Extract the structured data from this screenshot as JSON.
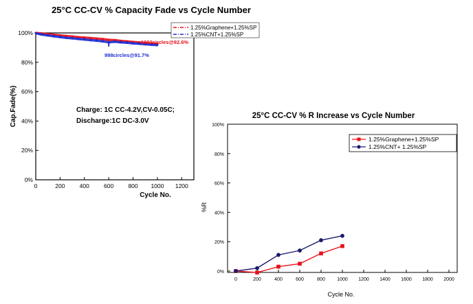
{
  "chart_data": [
    {
      "type": "line",
      "title": "25°C CC-CV  % Capacity  Fade vs Cycle Number",
      "xlabel": "Cycle No.",
      "ylabel": "Cap.Fade(%)",
      "xlim": [
        0,
        1300
      ],
      "ylim": [
        0,
        100
      ],
      "xticks": [
        "0",
        "200",
        "400",
        "600",
        "800",
        "1000",
        "1200"
      ],
      "yticks": [
        "0%",
        "20%",
        "40%",
        "60%",
        "80%",
        "100%"
      ],
      "legend": "top-right",
      "series": [
        {
          "name": "1.25%Graphene+1.25%SP",
          "color": "#e8101a",
          "x": [
            0,
            50,
            100,
            150,
            200,
            250,
            300,
            350,
            400,
            450,
            500,
            550,
            600,
            650,
            700,
            750,
            800,
            850,
            900,
            950,
            1002
          ],
          "y": [
            100,
            99.6,
            99.1,
            98.7,
            98.3,
            97.9,
            97.5,
            97.1,
            96.8,
            96.5,
            96.1,
            95.8,
            95.3,
            95.1,
            94.6,
            94.2,
            93.9,
            93.5,
            93.2,
            92.9,
            92.6
          ]
        },
        {
          "name": "1.25%CNT+1.25%SP",
          "color": "#1c2fd0",
          "x": [
            0,
            50,
            100,
            150,
            200,
            250,
            300,
            350,
            400,
            450,
            500,
            550,
            600,
            650,
            700,
            750,
            800,
            850,
            900,
            950,
            998
          ],
          "y": [
            99.8,
            98.9,
            98.3,
            97.7,
            97.2,
            96.7,
            96.3,
            95.9,
            95.5,
            95.1,
            94.7,
            94.3,
            93.6,
            94.0,
            93.6,
            93.3,
            92.9,
            92.6,
            92.3,
            92.0,
            91.7
          ]
        }
      ],
      "annotations": [
        "1002circles@92.6%",
        "998circles@91.7%"
      ],
      "text_note_lines": [
        "Charge:  1C CC-4.2V,CV-0.05C;",
        "Discharge:1C DC-3.0V"
      ]
    },
    {
      "type": "line",
      "title": "25°C CC-CV  % R  Increase vs Cycle Number",
      "xlabel": "Cycle No.",
      "ylabel": "%R",
      "xlim": [
        0,
        2000
      ],
      "ylim": [
        0,
        100
      ],
      "xticks": [
        "0",
        "200",
        "400",
        "600",
        "800",
        "1000",
        "1200",
        "1400",
        "1600",
        "1800",
        "2000"
      ],
      "yticks": [
        "0%",
        "20%",
        "40%",
        "60%",
        "80%",
        "100%"
      ],
      "legend": "top-right",
      "series": [
        {
          "name": "1.25%Graphene+1.25%SP",
          "color": "#e8101a",
          "marker": "square",
          "x": [
            0,
            200,
            400,
            600,
            800,
            1000
          ],
          "y": [
            0,
            -1,
            3,
            5,
            12,
            17
          ]
        },
        {
          "name": "1.25%CNT+         1.25%SP",
          "color": "#1a1a6e",
          "marker": "circle",
          "x": [
            0,
            200,
            400,
            600,
            800,
            1000
          ],
          "y": [
            0,
            2,
            11,
            14,
            21,
            24
          ]
        }
      ]
    }
  ]
}
